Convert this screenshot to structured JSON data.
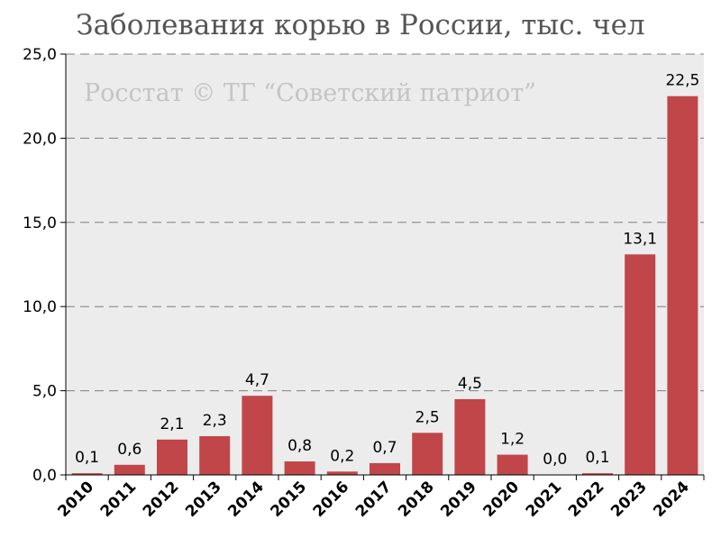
{
  "title": "Заболевания корью в России, тыс. чел",
  "watermark": "Росстат © ТГ “Советский патриот”",
  "colors": {
    "bar": "#c0464a",
    "plot_background": "#ececec",
    "grid": "#7f7f7f"
  },
  "chart_data": {
    "type": "bar",
    "title": "Заболевания корью в России, тыс. чел",
    "xlabel": "",
    "ylabel": "",
    "categories": [
      "2010",
      "2011",
      "2012",
      "2013",
      "2014",
      "2015",
      "2016",
      "2017",
      "2018",
      "2019",
      "2020",
      "2021",
      "2022",
      "2023",
      "2024"
    ],
    "values": [
      0.1,
      0.6,
      2.1,
      2.3,
      4.7,
      0.8,
      0.2,
      0.7,
      2.5,
      4.5,
      1.2,
      0.0,
      0.1,
      13.1,
      22.5
    ],
    "value_labels": [
      "0,1",
      "0,6",
      "2,1",
      "2,3",
      "4,7",
      "0,8",
      "0,2",
      "0,7",
      "2,5",
      "4,5",
      "1,2",
      "0,0",
      "0,1",
      "13,1",
      "22,5"
    ],
    "ylim": [
      0,
      25
    ],
    "yticks": [
      0,
      5,
      10,
      15,
      20,
      25
    ],
    "ytick_labels": [
      "0,0",
      "5,0",
      "10,0",
      "15,0",
      "20,0",
      "25,0"
    ],
    "grid": true
  }
}
